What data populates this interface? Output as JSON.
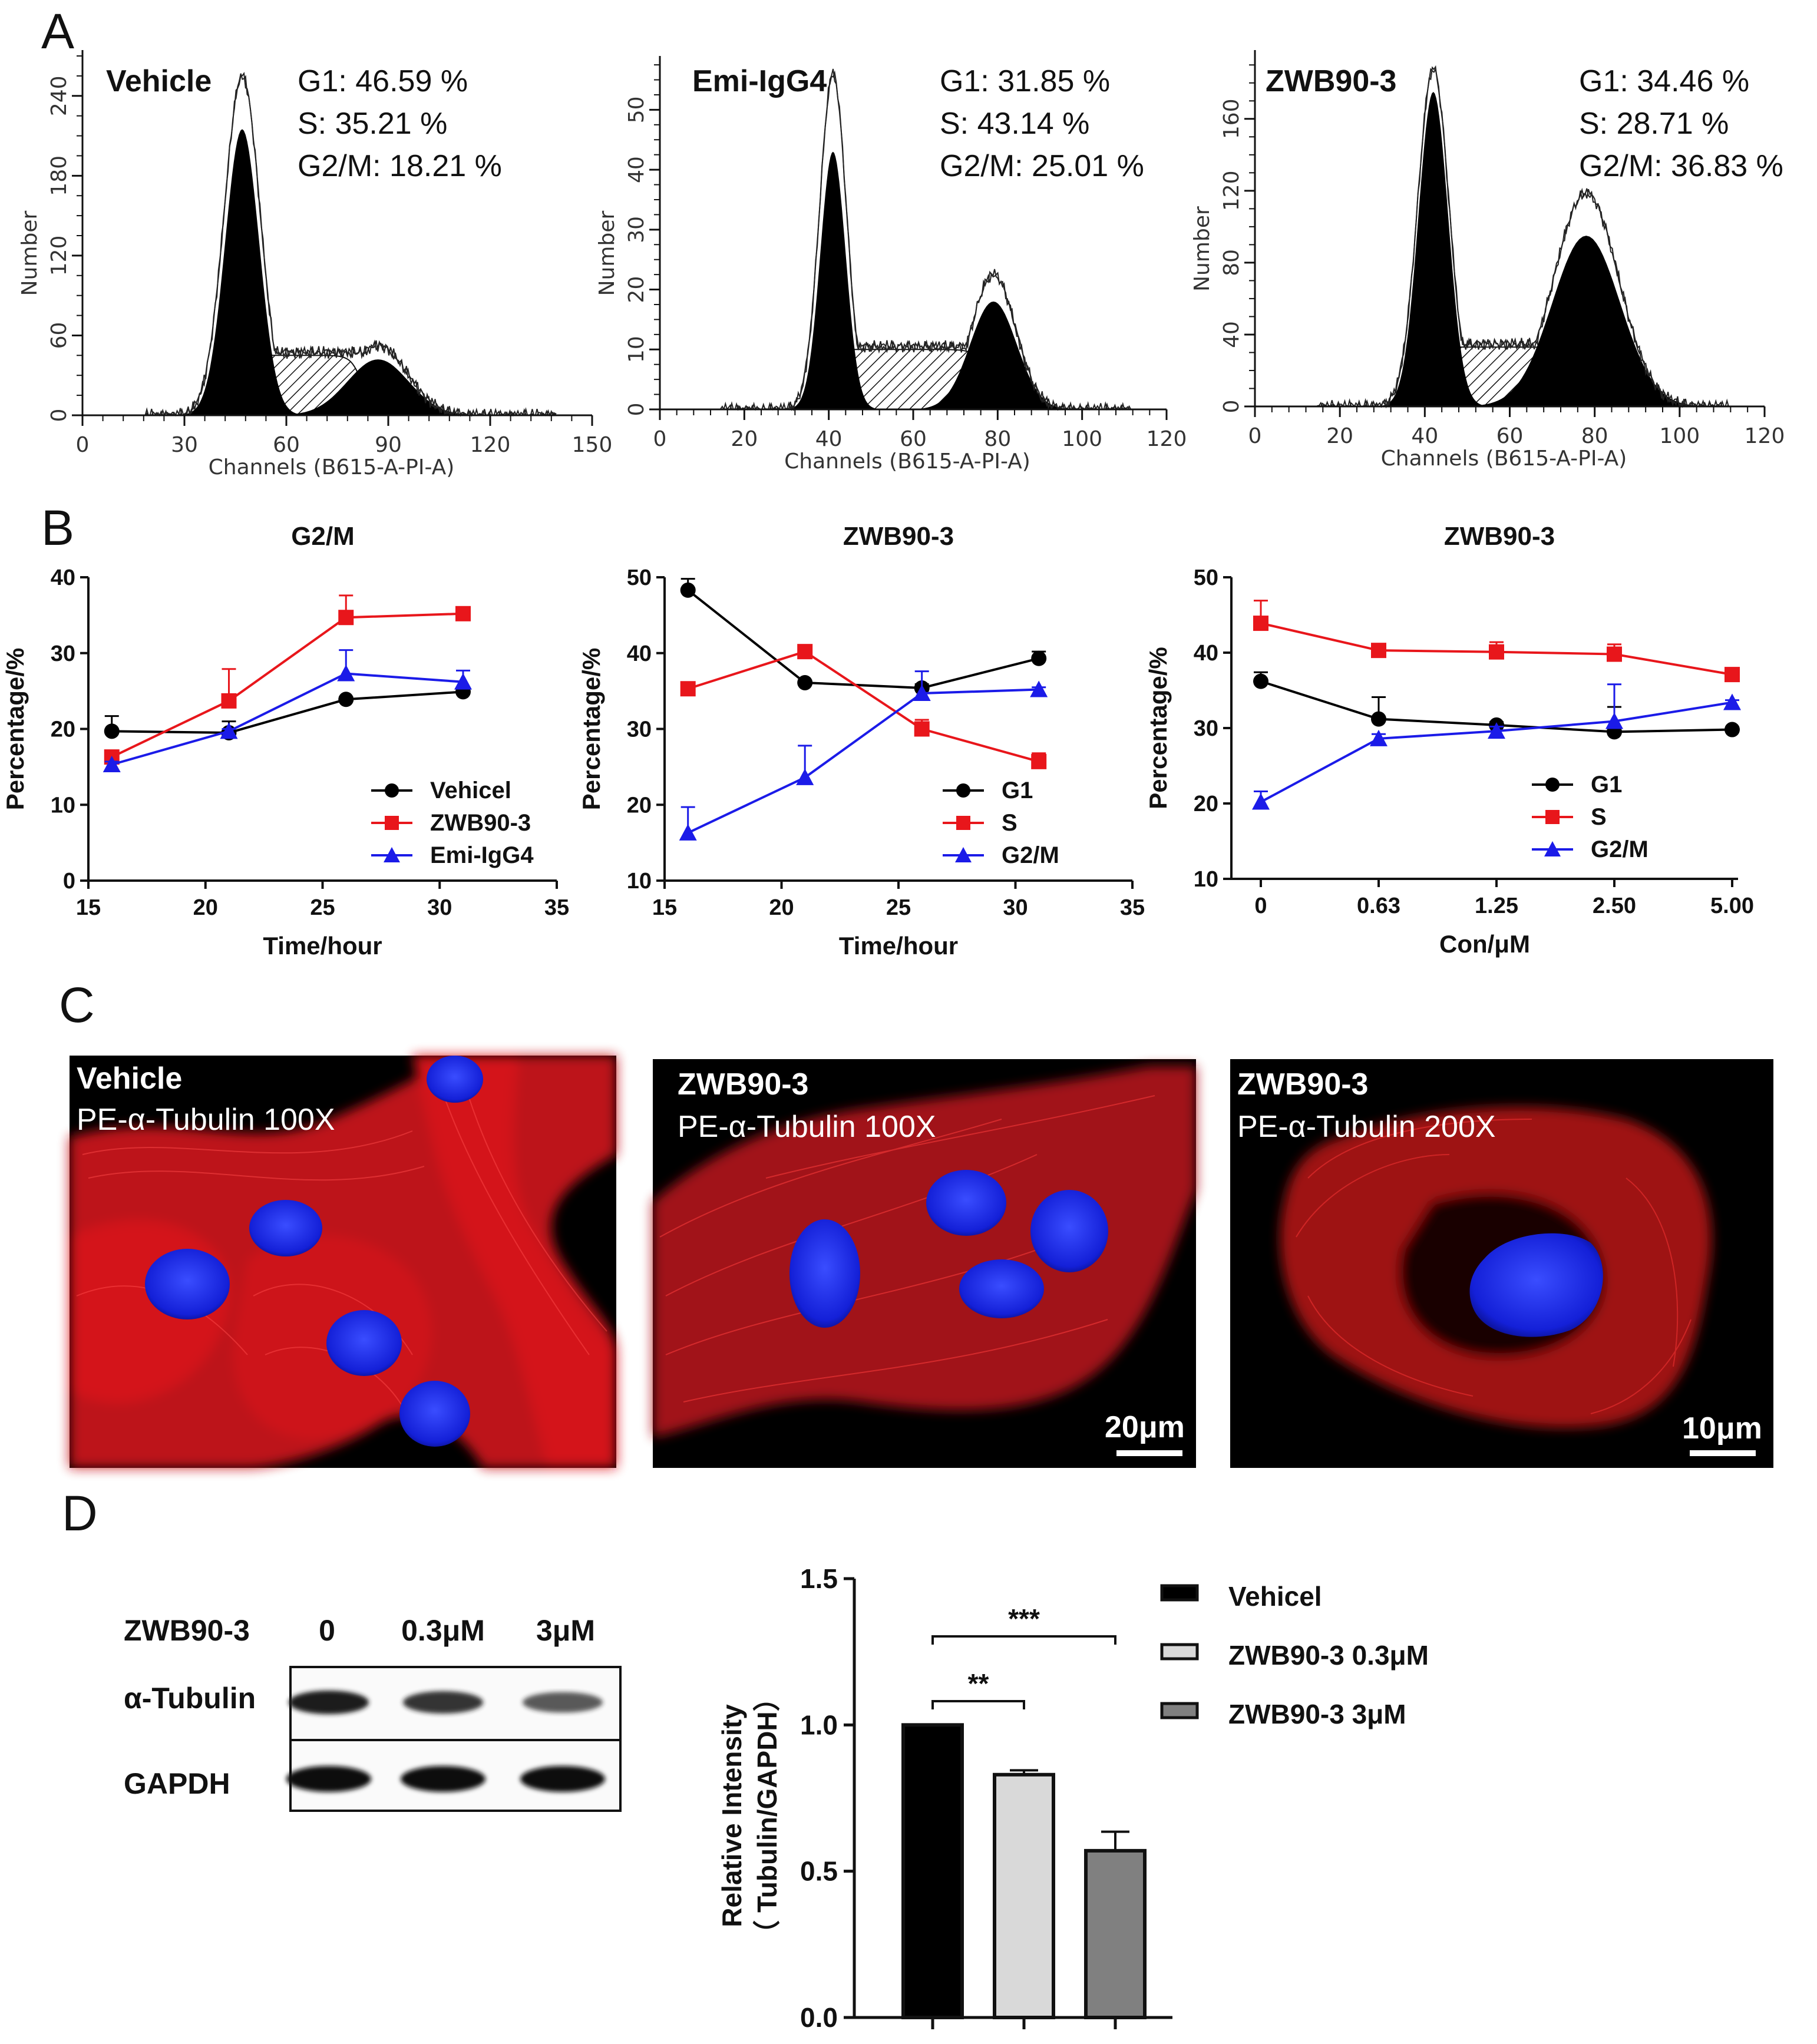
{
  "panels": {
    "a": "A",
    "b": "B",
    "c": "C",
    "d": "D"
  },
  "chart_data": [
    {
      "type": "area",
      "panel": "A",
      "title": "Vehicle",
      "stats": [
        "G1: 46.59 %",
        "S: 35.21 %",
        "G2/M: 18.21 %"
      ],
      "xlabel": "Channels (B615-A-PI-A)",
      "ylabel": "Number",
      "xlim": [
        0,
        150
      ],
      "ylim": [
        0,
        270
      ],
      "xticks": [
        "0",
        "30",
        "60",
        "90",
        "120",
        "150"
      ],
      "yticks": [
        "0",
        "60",
        "120",
        "180",
        "240"
      ],
      "g1_peak": [
        47,
        215,
        5
      ],
      "g2_peak": [
        87,
        42,
        9
      ],
      "s_level": [
        48,
        84,
        45
      ],
      "total_peak": 255
    },
    {
      "type": "area",
      "panel": "A",
      "title": "Emi-IgG4",
      "stats": [
        "G1: 31.85 %",
        "S: 43.14 %",
        "G2/M: 25.01 %"
      ],
      "xlabel": "Channels (B615-A-PI-A)",
      "ylabel": "Number",
      "xlim": [
        0,
        120
      ],
      "ylim": [
        0,
        58
      ],
      "xticks": [
        "0",
        "20",
        "40",
        "60",
        "80",
        "100",
        "120"
      ],
      "yticks": [
        "0",
        "10",
        "20",
        "30",
        "40",
        "50"
      ],
      "g1_peak": [
        41,
        43,
        3
      ],
      "g2_peak": [
        79,
        18,
        5.5
      ],
      "s_level": [
        41,
        80,
        10
      ],
      "total_peak": 56
    },
    {
      "type": "area",
      "panel": "A",
      "title": "ZWB90-3",
      "stats": [
        "G1: 34.46 %",
        "S: 28.71 %",
        "G2/M: 36.83 %"
      ],
      "xlabel": "Channels (B615-A-PI-A)",
      "ylabel": "Number",
      "xlim": [
        0,
        120
      ],
      "ylim": [
        0,
        195
      ],
      "xticks": [
        "0",
        "20",
        "40",
        "60",
        "80",
        "100",
        "120"
      ],
      "yticks": [
        "0",
        "40",
        "80",
        "120",
        "160"
      ],
      "g1_peak": [
        42,
        175,
        3.5
      ],
      "g2_peak": [
        78,
        95,
        8
      ],
      "s_level": [
        42,
        79,
        33
      ],
      "total_peak": 188
    },
    {
      "type": "line",
      "panel": "B",
      "title": "G2/M",
      "xlabel": "Time/hour",
      "ylabel": "Percentage/%",
      "xlim": [
        15,
        35
      ],
      "ylim": [
        0,
        40
      ],
      "xticks": [
        "15",
        "20",
        "25",
        "30",
        "35"
      ],
      "yticks": [
        "0",
        "10",
        "20",
        "30",
        "40"
      ],
      "x": [
        16,
        21,
        26,
        31
      ],
      "series": [
        {
          "name": "Vehicel",
          "color": "#000000",
          "marker": "circle",
          "values": [
            19.7,
            19.5,
            23.9,
            24.9
          ],
          "err": [
            2,
            1.5,
            0.3,
            0.6
          ]
        },
        {
          "name": "ZWB90-3",
          "color": "#e8161b",
          "marker": "square",
          "values": [
            16.3,
            23.7,
            34.7,
            35.2
          ],
          "err": [
            0.6,
            4.2,
            2.9,
            0.3
          ]
        },
        {
          "name": "Emi-IgG4",
          "color": "#1b1be8",
          "marker": "triangle",
          "values": [
            15.3,
            19.7,
            27.3,
            26.2
          ],
          "err": [
            0.4,
            0.3,
            3.1,
            1.5
          ]
        }
      ]
    },
    {
      "type": "line",
      "panel": "B",
      "title": "ZWB90-3",
      "xlabel": "Time/hour",
      "ylabel": "Percentage/%",
      "xlim": [
        15,
        35
      ],
      "ylim": [
        10,
        50
      ],
      "xticks": [
        "15",
        "20",
        "25",
        "30",
        "35"
      ],
      "yticks": [
        "10",
        "20",
        "30",
        "40",
        "50"
      ],
      "x": [
        16,
        21,
        26,
        31
      ],
      "series": [
        {
          "name": "G1",
          "color": "#000000",
          "marker": "circle",
          "values": [
            48.3,
            36.1,
            35.4,
            39.3
          ],
          "err": [
            1.5,
            0.3,
            0.5,
            0.9
          ]
        },
        {
          "name": "S",
          "color": "#e8161b",
          "marker": "square",
          "values": [
            35.3,
            40.2,
            30.0,
            25.7
          ],
          "err": [
            0.3,
            0.4,
            1.2,
            1.1
          ]
        },
        {
          "name": "G2/M",
          "color": "#1b1be8",
          "marker": "triangle",
          "values": [
            16.3,
            23.6,
            34.7,
            35.2
          ],
          "err": [
            3.4,
            4.2,
            2.9,
            0.3
          ]
        }
      ]
    },
    {
      "type": "line",
      "panel": "B",
      "title": "ZWB90-3",
      "xlabel": "Con/μM",
      "ylabel": "Percentage/%",
      "xlim": [
        -0.25,
        4.05
      ],
      "ylim": [
        10,
        50
      ],
      "xticks": [
        "0",
        "0.63",
        "1.25",
        "2.50",
        "5.00"
      ],
      "yticks": [
        "10",
        "20",
        "30",
        "40",
        "50"
      ],
      "x": [
        0,
        1,
        2,
        3,
        4
      ],
      "series": [
        {
          "name": "G1",
          "color": "#000000",
          "marker": "circle",
          "values": [
            36.2,
            31.2,
            30.4,
            29.5,
            29.8
          ],
          "err": [
            1.2,
            2.9,
            0.4,
            3.3,
            0.3
          ]
        },
        {
          "name": "S",
          "color": "#e8161b",
          "marker": "square",
          "values": [
            43.9,
            40.3,
            40.1,
            39.8,
            37.1
          ],
          "err": [
            3.0,
            0.3,
            1.3,
            1.3,
            0.3
          ]
        },
        {
          "name": "G2/M",
          "color": "#1b1be8",
          "marker": "triangle",
          "values": [
            20.2,
            28.6,
            29.6,
            30.9,
            33.4
          ],
          "err": [
            1.4,
            0.6,
            0.6,
            4.9,
            0.3
          ]
        }
      ]
    },
    {
      "type": "bar",
      "panel": "D",
      "categories": [
        "Vehicel",
        "ZWB90-3 0.3μM",
        "ZWB90-3 3μM"
      ],
      "values": [
        1.0,
        0.83,
        0.57
      ],
      "err": [
        0,
        0.015,
        0.065
      ],
      "colors": [
        "#000000",
        "#d9d9d9",
        "#808080"
      ],
      "ylabel": "Relative Intensity",
      "ylabel2": "（ Tubulin/GAPDH）",
      "ylim": [
        0,
        1.5
      ],
      "yticks": [
        "0.0",
        "0.5",
        "1.0",
        "1.5"
      ],
      "sig": [
        {
          "from": 0,
          "to": 1,
          "label": "**"
        },
        {
          "from": 0,
          "to": 2,
          "label": "***"
        }
      ]
    }
  ],
  "microscopy": [
    {
      "title": "Vehicle",
      "stain": "PE-α-Tubulin  100X",
      "scale": ""
    },
    {
      "title": "ZWB90-3",
      "stain": "PE-α-Tubulin  100X",
      "scale": "20μm"
    },
    {
      "title": "ZWB90-3",
      "stain": "PE-α-Tubulin  200X",
      "scale": "10μm"
    }
  ],
  "western": {
    "treatment": "ZWB90-3",
    "lanes": [
      "0",
      "0.3μM",
      "3μM"
    ],
    "rows": [
      "α-Tubulin",
      "GAPDH"
    ],
    "tubulin_intensity": [
      1.0,
      0.83,
      0.57
    ],
    "gapdh_intensity": [
      1.0,
      1.0,
      1.0
    ]
  }
}
